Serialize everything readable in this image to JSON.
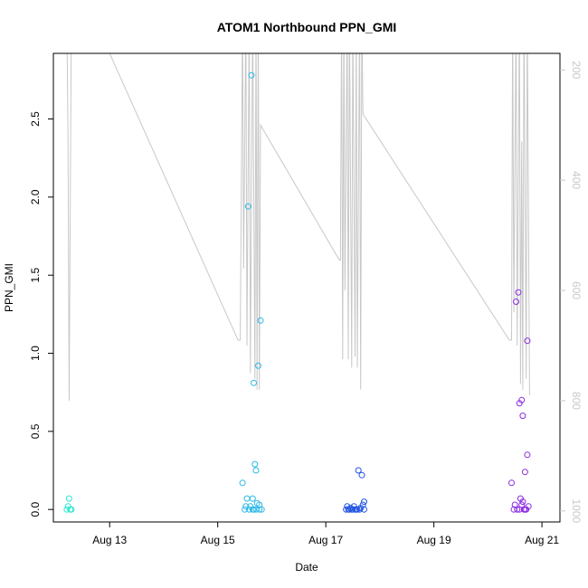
{
  "chart_data": {
    "type": "scatter",
    "title": "ATOM1 Northbound PPN_GMI",
    "xlabel": "Date",
    "ylabel": "PPN_GMI",
    "xlim": [
      "2021-08-11T23:00",
      "2021-08-21T08:00"
    ],
    "ylim": [
      -0.08,
      2.92
    ],
    "x_ticks": [
      {
        "label": "Aug 13",
        "x": "2021-08-13T00:00"
      },
      {
        "label": "Aug 15",
        "x": "2021-08-15T00:00"
      },
      {
        "label": "Aug 17",
        "x": "2021-08-17T00:00"
      },
      {
        "label": "Aug 19",
        "x": "2021-08-19T00:00"
      },
      {
        "label": "Aug 21",
        "x": "2021-08-21T00:00"
      }
    ],
    "y_ticks": [
      "0.0",
      "0.5",
      "1.0",
      "1.5",
      "2.0",
      "2.5"
    ],
    "y2": {
      "ticks": [
        "200",
        "400",
        "600",
        "800",
        "1000"
      ],
      "reversed": true,
      "range": [
        170,
        1020
      ],
      "color": "#c8c8c8"
    },
    "grid": false,
    "legend": "none",
    "series": [
      {
        "color": "#29e8d0",
        "points": [
          [
            "2021-08-12T05:00",
            0.0
          ],
          [
            "2021-08-12T05:30",
            0.02
          ],
          [
            "2021-08-12T06:00",
            0.07
          ],
          [
            "2021-08-12T07:00",
            0.0
          ],
          [
            "2021-08-12T06:30",
            0.0
          ]
        ]
      },
      {
        "color": "#2ab8e8",
        "points": [
          [
            "2021-08-15T11:00",
            0.17
          ],
          [
            "2021-08-15T12:00",
            0.0
          ],
          [
            "2021-08-15T12:30",
            0.02
          ],
          [
            "2021-08-15T13:30",
            1.94
          ],
          [
            "2021-08-15T13:00",
            0.07
          ],
          [
            "2021-08-15T14:00",
            0.0
          ],
          [
            "2021-08-15T14:30",
            0.02
          ],
          [
            "2021-08-15T15:00",
            2.78
          ],
          [
            "2021-08-15T15:30",
            0.07
          ],
          [
            "2021-08-15T16:00",
            0.81
          ],
          [
            "2021-08-15T16:30",
            0.29
          ],
          [
            "2021-08-15T17:00",
            0.25
          ],
          [
            "2021-08-15T16:00",
            0.0
          ],
          [
            "2021-08-15T17:30",
            0.04
          ],
          [
            "2021-08-15T18:00",
            0.92
          ],
          [
            "2021-08-15T18:30",
            0.0
          ],
          [
            "2021-08-15T19:00",
            1.21
          ],
          [
            "2021-08-15T19:30",
            0.0
          ],
          [
            "2021-08-15T15:30",
            0.0
          ],
          [
            "2021-08-15T17:00",
            0.0
          ],
          [
            "2021-08-15T18:30",
            0.03
          ]
        ]
      },
      {
        "color": "#2255e0",
        "points": [
          [
            "2021-08-17T09:00",
            0.0
          ],
          [
            "2021-08-17T09:30",
            0.02
          ],
          [
            "2021-08-17T10:00",
            0.0
          ],
          [
            "2021-08-17T11:00",
            0.01
          ],
          [
            "2021-08-17T12:00",
            0.0
          ],
          [
            "2021-08-17T12:30",
            0.02
          ],
          [
            "2021-08-17T13:00",
            0.0
          ],
          [
            "2021-08-17T14:00",
            0.0
          ],
          [
            "2021-08-17T14:30",
            0.25
          ],
          [
            "2021-08-17T15:00",
            0.0
          ],
          [
            "2021-08-17T15:30",
            0.01
          ],
          [
            "2021-08-17T16:00",
            0.22
          ],
          [
            "2021-08-17T16:30",
            0.03
          ],
          [
            "2021-08-17T17:00",
            0.05
          ],
          [
            "2021-08-17T17:00",
            0.0
          ],
          [
            "2021-08-17T10:30",
            0.0
          ],
          [
            "2021-08-17T13:30",
            0.0
          ],
          [
            "2021-08-17T11:30",
            0.0
          ]
        ]
      },
      {
        "color": "#8a2be2",
        "points": [
          [
            "2021-08-20T10:30",
            0.17
          ],
          [
            "2021-08-20T11:30",
            0.0
          ],
          [
            "2021-08-20T12:00",
            0.03
          ],
          [
            "2021-08-20T12:30",
            1.33
          ],
          [
            "2021-08-20T13:30",
            1.39
          ],
          [
            "2021-08-20T14:00",
            0.0
          ],
          [
            "2021-08-20T14:00",
            0.68
          ],
          [
            "2021-08-20T14:30",
            0.07
          ],
          [
            "2021-08-20T15:00",
            0.7
          ],
          [
            "2021-08-20T15:30",
            0.6
          ],
          [
            "2021-08-20T15:30",
            0.05
          ],
          [
            "2021-08-20T16:00",
            0.0
          ],
          [
            "2021-08-20T16:30",
            0.24
          ],
          [
            "2021-08-20T17:30",
            0.35
          ],
          [
            "2021-08-20T17:00",
            0.0
          ],
          [
            "2021-08-20T17:30",
            1.08
          ],
          [
            "2021-08-20T18:00",
            0.02
          ],
          [
            "2021-08-20T13:00",
            0.0
          ],
          [
            "2021-08-20T15:00",
            0.03
          ],
          [
            "2021-08-20T16:30",
            0.0
          ]
        ]
      }
    ],
    "line_series": {
      "color": "#c8c8c8",
      "axis": "y2",
      "points": [
        [
          "2021-08-12T05:00",
          100
        ],
        [
          "2021-08-12T05:30",
          330
        ],
        [
          "2021-08-12T06:00",
          800
        ],
        [
          "2021-08-12T07:00",
          100
        ],
        [
          "2021-08-13T00:00",
          170
        ],
        [
          "2021-08-15T09:00",
          690
        ],
        [
          "2021-08-15T10:00",
          690
        ],
        [
          "2021-08-15T11:00",
          100
        ],
        [
          "2021-08-15T11:30",
          560
        ],
        [
          "2021-08-15T12:30",
          100
        ],
        [
          "2021-08-15T13:00",
          700
        ],
        [
          "2021-08-15T14:00",
          100
        ],
        [
          "2021-08-15T14:30",
          750
        ],
        [
          "2021-08-15T15:30",
          100
        ],
        [
          "2021-08-15T16:30",
          760
        ],
        [
          "2021-08-15T17:00",
          100
        ],
        [
          "2021-08-15T17:30",
          780
        ],
        [
          "2021-08-15T18:00",
          100
        ],
        [
          "2021-08-15T18:30",
          780
        ],
        [
          "2021-08-15T19:00",
          300
        ],
        [
          "2021-08-17T06:00",
          545
        ],
        [
          "2021-08-17T06:30",
          545
        ],
        [
          "2021-08-17T07:00",
          100
        ],
        [
          "2021-08-17T07:30",
          725
        ],
        [
          "2021-08-17T08:00",
          100
        ],
        [
          "2021-08-17T08:30",
          600
        ],
        [
          "2021-08-17T09:30",
          100
        ],
        [
          "2021-08-17T10:00",
          725
        ],
        [
          "2021-08-17T10:30",
          100
        ],
        [
          "2021-08-17T11:30",
          740
        ],
        [
          "2021-08-17T12:00",
          100
        ],
        [
          "2021-08-17T13:00",
          720
        ],
        [
          "2021-08-17T13:30",
          100
        ],
        [
          "2021-08-17T14:00",
          740
        ],
        [
          "2021-08-17T15:00",
          100
        ],
        [
          "2021-08-17T15:30",
          780
        ],
        [
          "2021-08-17T16:00",
          100
        ],
        [
          "2021-08-17T16:30",
          280
        ],
        [
          "2021-08-20T09:30",
          690
        ],
        [
          "2021-08-20T10:30",
          690
        ],
        [
          "2021-08-20T11:00",
          100
        ],
        [
          "2021-08-20T11:30",
          640
        ],
        [
          "2021-08-20T12:30",
          100
        ],
        [
          "2021-08-20T13:00",
          700
        ],
        [
          "2021-08-20T14:00",
          100
        ],
        [
          "2021-08-20T14:30",
          770
        ],
        [
          "2021-08-20T15:00",
          330
        ],
        [
          "2021-08-20T15:30",
          780
        ],
        [
          "2021-08-20T16:00",
          100
        ],
        [
          "2021-08-20T17:00",
          760
        ],
        [
          "2021-08-20T17:30",
          100
        ],
        [
          "2021-08-20T18:30",
          790
        ]
      ]
    }
  }
}
